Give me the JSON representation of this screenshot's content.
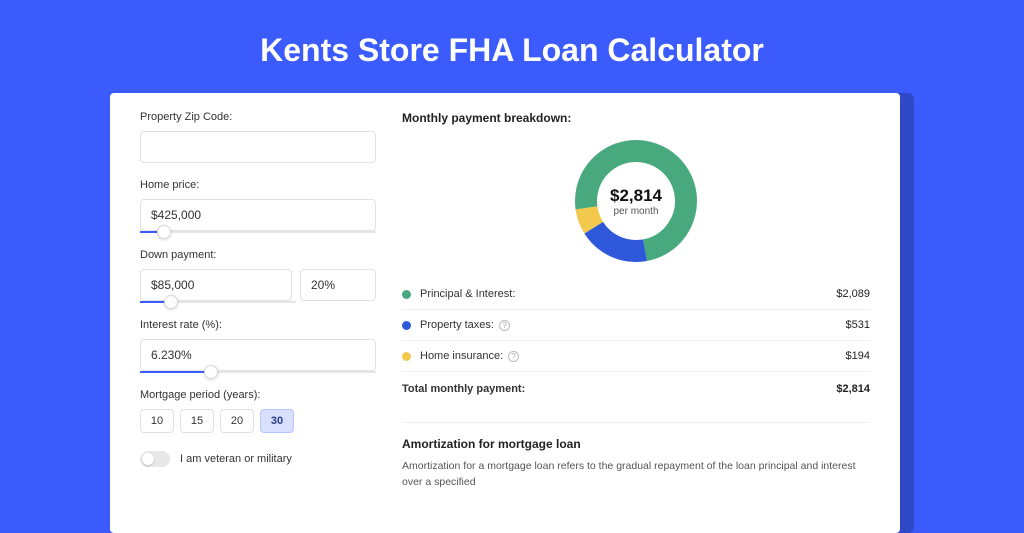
{
  "page": {
    "title": "Kents Store FHA Loan Calculator",
    "background_color": "#3b5bfd",
    "card_shadow_color": "#2f49c9"
  },
  "form": {
    "zip": {
      "label": "Property Zip Code:",
      "value": ""
    },
    "home_price": {
      "label": "Home price:",
      "value": "$425,000",
      "slider_pct": 10
    },
    "down_payment": {
      "label": "Down payment:",
      "amount": "$85,000",
      "percent": "20%",
      "slider_pct": 20
    },
    "interest_rate": {
      "label": "Interest rate (%):",
      "value": "6.230%",
      "slider_pct": 30
    },
    "period": {
      "label": "Mortgage period (years):",
      "options": [
        "10",
        "15",
        "20",
        "30"
      ],
      "selected": "30"
    },
    "veteran": {
      "label": "I am veteran or military",
      "checked": false
    }
  },
  "breakdown": {
    "title": "Monthly payment breakdown:",
    "center_amount": "$2,814",
    "center_sub": "per month",
    "items": [
      {
        "label": "Principal & Interest:",
        "value": "$2,089",
        "color": "#49a97e",
        "pct": 74.2,
        "info": false
      },
      {
        "label": "Property taxes:",
        "value": "$531",
        "color": "#2f57d9",
        "pct": 18.9,
        "info": true
      },
      {
        "label": "Home insurance:",
        "value": "$194",
        "color": "#f2c94c",
        "pct": 6.9,
        "info": true
      }
    ],
    "total": {
      "label": "Total monthly payment:",
      "value": "$2,814"
    }
  },
  "donut": {
    "radius": 50,
    "stroke_width": 22,
    "rotation_deg": 172,
    "background_color": "#ffffff"
  },
  "amortization": {
    "title": "Amortization for mortgage loan",
    "text": "Amortization for a mortgage loan refers to the gradual repayment of the loan principal and interest over a specified"
  }
}
